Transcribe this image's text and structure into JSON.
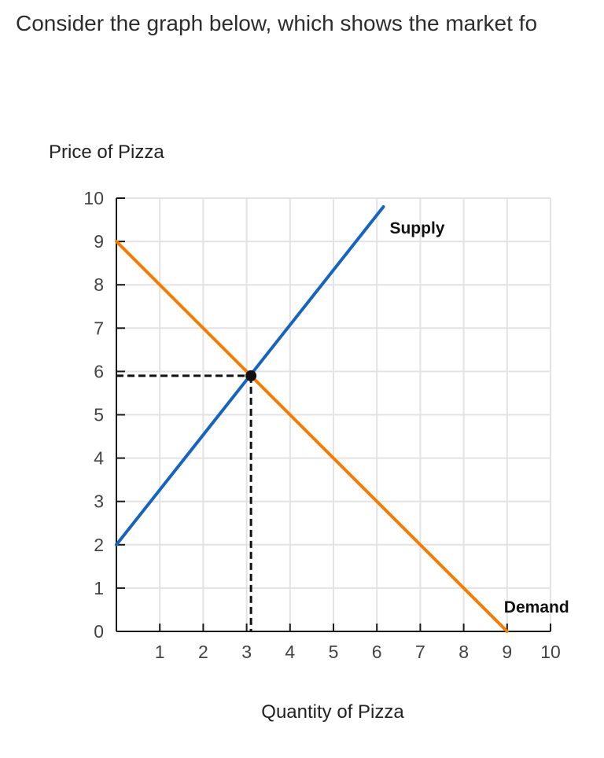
{
  "question": {
    "text": "Consider the graph below, which shows the market fo"
  },
  "colors": {
    "supply": "#1565c0",
    "demand": "#f57c00",
    "grid": "#e3e3e3",
    "axis": "#1a1a1a",
    "dashed": "#111111",
    "point": "#111111"
  },
  "chart_data": {
    "type": "line",
    "title": "",
    "xlabel": "Quantity of Pizza",
    "ylabel": "Price of Pizza",
    "xlim": [
      0,
      10
    ],
    "ylim": [
      0,
      10
    ],
    "x_ticks": [
      "1",
      "2",
      "3",
      "4",
      "5",
      "6",
      "7",
      "8",
      "9",
      "10"
    ],
    "y_ticks": [
      "0",
      "1",
      "2",
      "3",
      "4",
      "5",
      "6",
      "7",
      "8",
      "9",
      "10"
    ],
    "grid": true,
    "series": [
      {
        "name": "Supply",
        "color_key": "supply",
        "points": [
          [
            0,
            2
          ],
          [
            6.15,
            9.8
          ]
        ]
      },
      {
        "name": "Demand",
        "color_key": "demand",
        "points": [
          [
            0,
            9
          ],
          [
            9,
            0
          ]
        ]
      }
    ],
    "equilibrium": {
      "x": 3.1,
      "y": 5.9
    },
    "guides": "dashed lines from equilibrium point to both axes"
  }
}
